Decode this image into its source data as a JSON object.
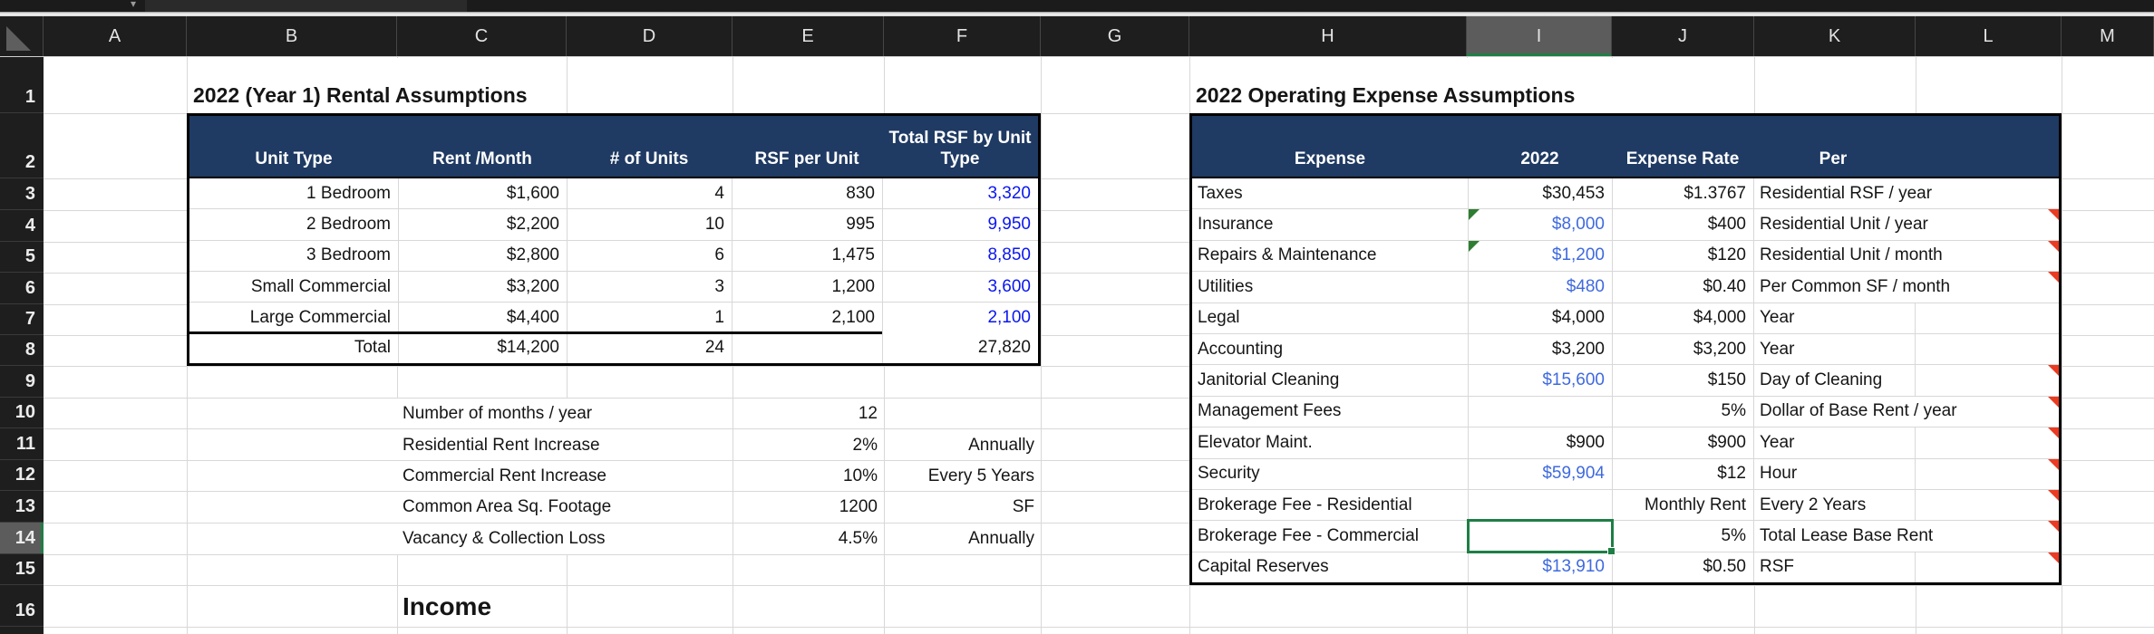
{
  "app": {
    "chevron": "▾"
  },
  "colors": {
    "header_bg": "#1e1e1e",
    "header_text": "#e3e3e3",
    "selected_header_bg": "#5c5c5c",
    "accent_green": "#1f7e45",
    "table_header_bg": "#1f3a63",
    "table_header_text": "#ffffff",
    "gridline": "#d8d8d8",
    "input_blue": "#0a16ef",
    "formula_blue": "#3f6ade",
    "comment_red": "#ea3b23",
    "text": "#151515"
  },
  "grid": {
    "columns": [
      "A",
      "B",
      "C",
      "D",
      "E",
      "F",
      "G",
      "H",
      "I",
      "J",
      "K",
      "L",
      "M"
    ],
    "rows": [
      "1",
      "2",
      "3",
      "4",
      "5",
      "6",
      "7",
      "8",
      "9",
      "10",
      "11",
      "12",
      "13",
      "14",
      "15",
      "16"
    ],
    "selected_column": "I",
    "selected_row": "14",
    "selected_cell": "I14"
  },
  "left_section": {
    "title": "2022 (Year 1) Rental Assumptions",
    "table": {
      "headers": [
        "Unit Type",
        "Rent /Month",
        "# of Units",
        "RSF per Unit",
        "Total RSF by Unit Type"
      ],
      "rows": [
        {
          "unit_type": "1 Bedroom",
          "rent": "$1,600",
          "units": "4",
          "rsf": "830",
          "total_rsf": "3,320"
        },
        {
          "unit_type": "2 Bedroom",
          "rent": "$2,200",
          "units": "10",
          "rsf": "995",
          "total_rsf": "9,950"
        },
        {
          "unit_type": "3 Bedroom",
          "rent": "$2,800",
          "units": "6",
          "rsf": "1,475",
          "total_rsf": "8,850"
        },
        {
          "unit_type": "Small Commercial",
          "rent": "$3,200",
          "units": "3",
          "rsf": "1,200",
          "total_rsf": "3,600"
        },
        {
          "unit_type": "Large Commercial",
          "rent": "$4,400",
          "units": "1",
          "rsf": "2,100",
          "total_rsf": "2,100"
        }
      ],
      "total": {
        "label": "Total",
        "rent": "$14,200",
        "units": "24",
        "rsf": "",
        "total_rsf": "27,820"
      }
    },
    "assumptions": [
      {
        "label": "Number of months / year",
        "value": "12",
        "unit": ""
      },
      {
        "label": "Residential Rent Increase",
        "value": "2%",
        "unit": "Annually"
      },
      {
        "label": "Commercial Rent Increase",
        "value": "10%",
        "unit": "Every 5 Years"
      },
      {
        "label": "Common Area Sq. Footage",
        "value": "1200",
        "unit": "SF"
      },
      {
        "label": "Vacancy & Collection Loss",
        "value": "4.5%",
        "unit": "Annually"
      }
    ],
    "section_label": "Income"
  },
  "right_section": {
    "title": "2022 Operating Expense Assumptions",
    "table": {
      "headers": [
        "Expense",
        "2022",
        "Expense Rate",
        "Per"
      ],
      "rows": [
        {
          "expense": "Taxes",
          "y2022": "$30,453",
          "rate": "$1.3767",
          "per": "Residential RSF / year",
          "blue": false,
          "green_flag": false,
          "comment": false,
          "selected": false
        },
        {
          "expense": "Insurance",
          "y2022": "$8,000",
          "rate": "$400",
          "per": "Residential Unit / year",
          "blue": true,
          "green_flag": true,
          "comment": true,
          "selected": false
        },
        {
          "expense": "Repairs & Maintenance",
          "y2022": "$1,200",
          "rate": "$120",
          "per": "Residential Unit / month",
          "blue": true,
          "green_flag": true,
          "comment": true,
          "selected": false
        },
        {
          "expense": "Utilities",
          "y2022": "$480",
          "rate": "$0.40",
          "per": "Per Common SF / month",
          "blue": true,
          "green_flag": false,
          "comment": true,
          "selected": false
        },
        {
          "expense": "Legal",
          "y2022": "$4,000",
          "rate": "$4,000",
          "per": "Year",
          "blue": false,
          "green_flag": false,
          "comment": false,
          "selected": false
        },
        {
          "expense": "Accounting",
          "y2022": "$3,200",
          "rate": "$3,200",
          "per": "Year",
          "blue": false,
          "green_flag": false,
          "comment": false,
          "selected": false
        },
        {
          "expense": "Janitorial Cleaning",
          "y2022": "$15,600",
          "rate": "$150",
          "per": "Day of Cleaning",
          "blue": true,
          "green_flag": false,
          "comment": true,
          "selected": false
        },
        {
          "expense": "Management Fees",
          "y2022": "",
          "rate": "5%",
          "per": "Dollar of Base Rent / year",
          "blue": false,
          "green_flag": false,
          "comment": true,
          "selected": false
        },
        {
          "expense": "Elevator Maint.",
          "y2022": "$900",
          "rate": "$900",
          "per": "Year",
          "blue": false,
          "green_flag": false,
          "comment": true,
          "selected": false
        },
        {
          "expense": "Security",
          "y2022": "$59,904",
          "rate": "$12",
          "per": "Hour",
          "blue": true,
          "green_flag": false,
          "comment": true,
          "selected": false
        },
        {
          "expense": "Brokerage Fee - Residential",
          "y2022": "",
          "rate": "Monthly Rent",
          "per": "Every 2 Years",
          "blue": false,
          "green_flag": false,
          "comment": true,
          "selected": false
        },
        {
          "expense": "Brokerage Fee - Commercial",
          "y2022": "",
          "rate": "5%",
          "per": "Total Lease Base Rent",
          "blue": false,
          "green_flag": false,
          "comment": true,
          "selected": true
        },
        {
          "expense": "Capital Reserves",
          "y2022": "$13,910",
          "rate": "$0.50",
          "per": "RSF",
          "blue": true,
          "green_flag": false,
          "comment": true,
          "selected": false
        }
      ]
    }
  }
}
